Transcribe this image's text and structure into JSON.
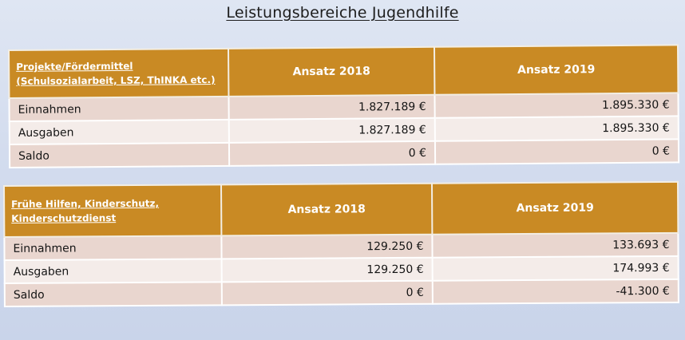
{
  "title": "Leistungsbereiche Jugendhilfe",
  "tables": [
    {
      "header": {
        "category_line1": "Projekte/Fördermittel",
        "category_line2": "(Schulsozialarbeit, LSZ, ThINKA etc.)",
        "col_2018": "Ansatz 2018",
        "col_2019": "Ansatz 2019"
      },
      "rows": [
        {
          "label": "Einnahmen",
          "v2018": "1.827.189 €",
          "v2019": "1.895.330 €"
        },
        {
          "label": "Ausgaben",
          "v2018": "1.827.189 €",
          "v2019": "1.895.330 €"
        },
        {
          "label": "Saldo",
          "v2018": "0 €",
          "v2019": "0 €"
        }
      ]
    },
    {
      "header": {
        "category_line1": "Frühe Hilfen, Kinderschutz,",
        "category_line2": "Kinderschutzdienst",
        "col_2018": "Ansatz 2018",
        "col_2019": "Ansatz 2019"
      },
      "rows": [
        {
          "label": "Einnahmen",
          "v2018": "129.250 €",
          "v2019": "133.693 €"
        },
        {
          "label": "Ausgaben",
          "v2018": "129.250 €",
          "v2019": "174.993 €"
        },
        {
          "label": "Saldo",
          "v2018": "0 €",
          "v2019": "-41.300 €"
        }
      ]
    }
  ],
  "colors": {
    "header_bg": "#c98a24",
    "row_even": "#e9d6cf",
    "row_odd": "#f4ece9"
  }
}
